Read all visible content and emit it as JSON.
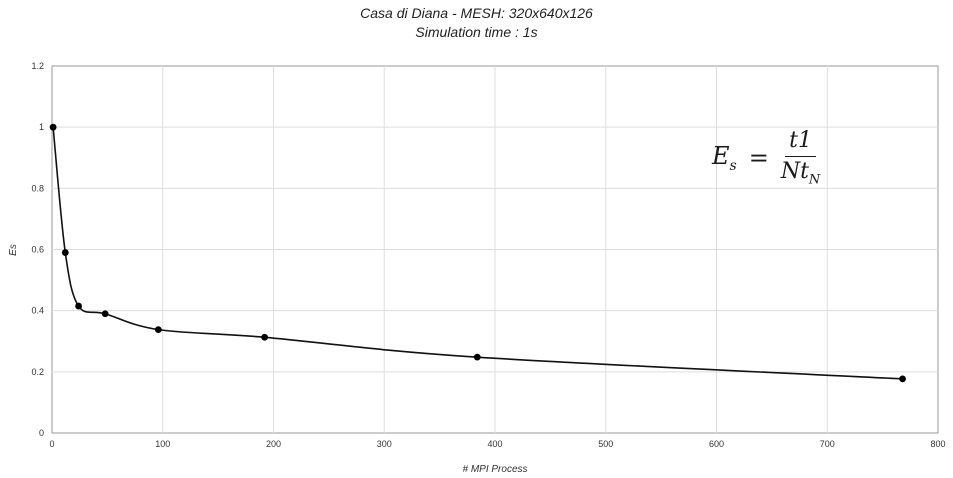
{
  "chart_data": {
    "type": "line",
    "title": "Casa di Diana - MESH: 320x640x126",
    "subtitle": "Simulation time : 1s",
    "xlabel": "# MPI Process",
    "ylabel": "Es",
    "xlim": [
      0,
      800
    ],
    "ylim": [
      0,
      1.2
    ],
    "xticks": [
      0,
      100,
      200,
      300,
      400,
      500,
      600,
      700,
      800
    ],
    "yticks": [
      0,
      0.2,
      0.4,
      0.6,
      0.8,
      1,
      1.2
    ],
    "grid": true,
    "series": [
      {
        "x": [
          1,
          12,
          24,
          48,
          96,
          192,
          384,
          768
        ],
        "y": [
          1.0,
          0.59,
          0.415,
          0.39,
          0.338,
          0.313,
          0.248,
          0.177
        ]
      }
    ],
    "annotation": {
      "lhs_base": "E",
      "lhs_sub": "s",
      "numerator": "t1",
      "den_base": "Nt",
      "den_sub": "N"
    }
  }
}
